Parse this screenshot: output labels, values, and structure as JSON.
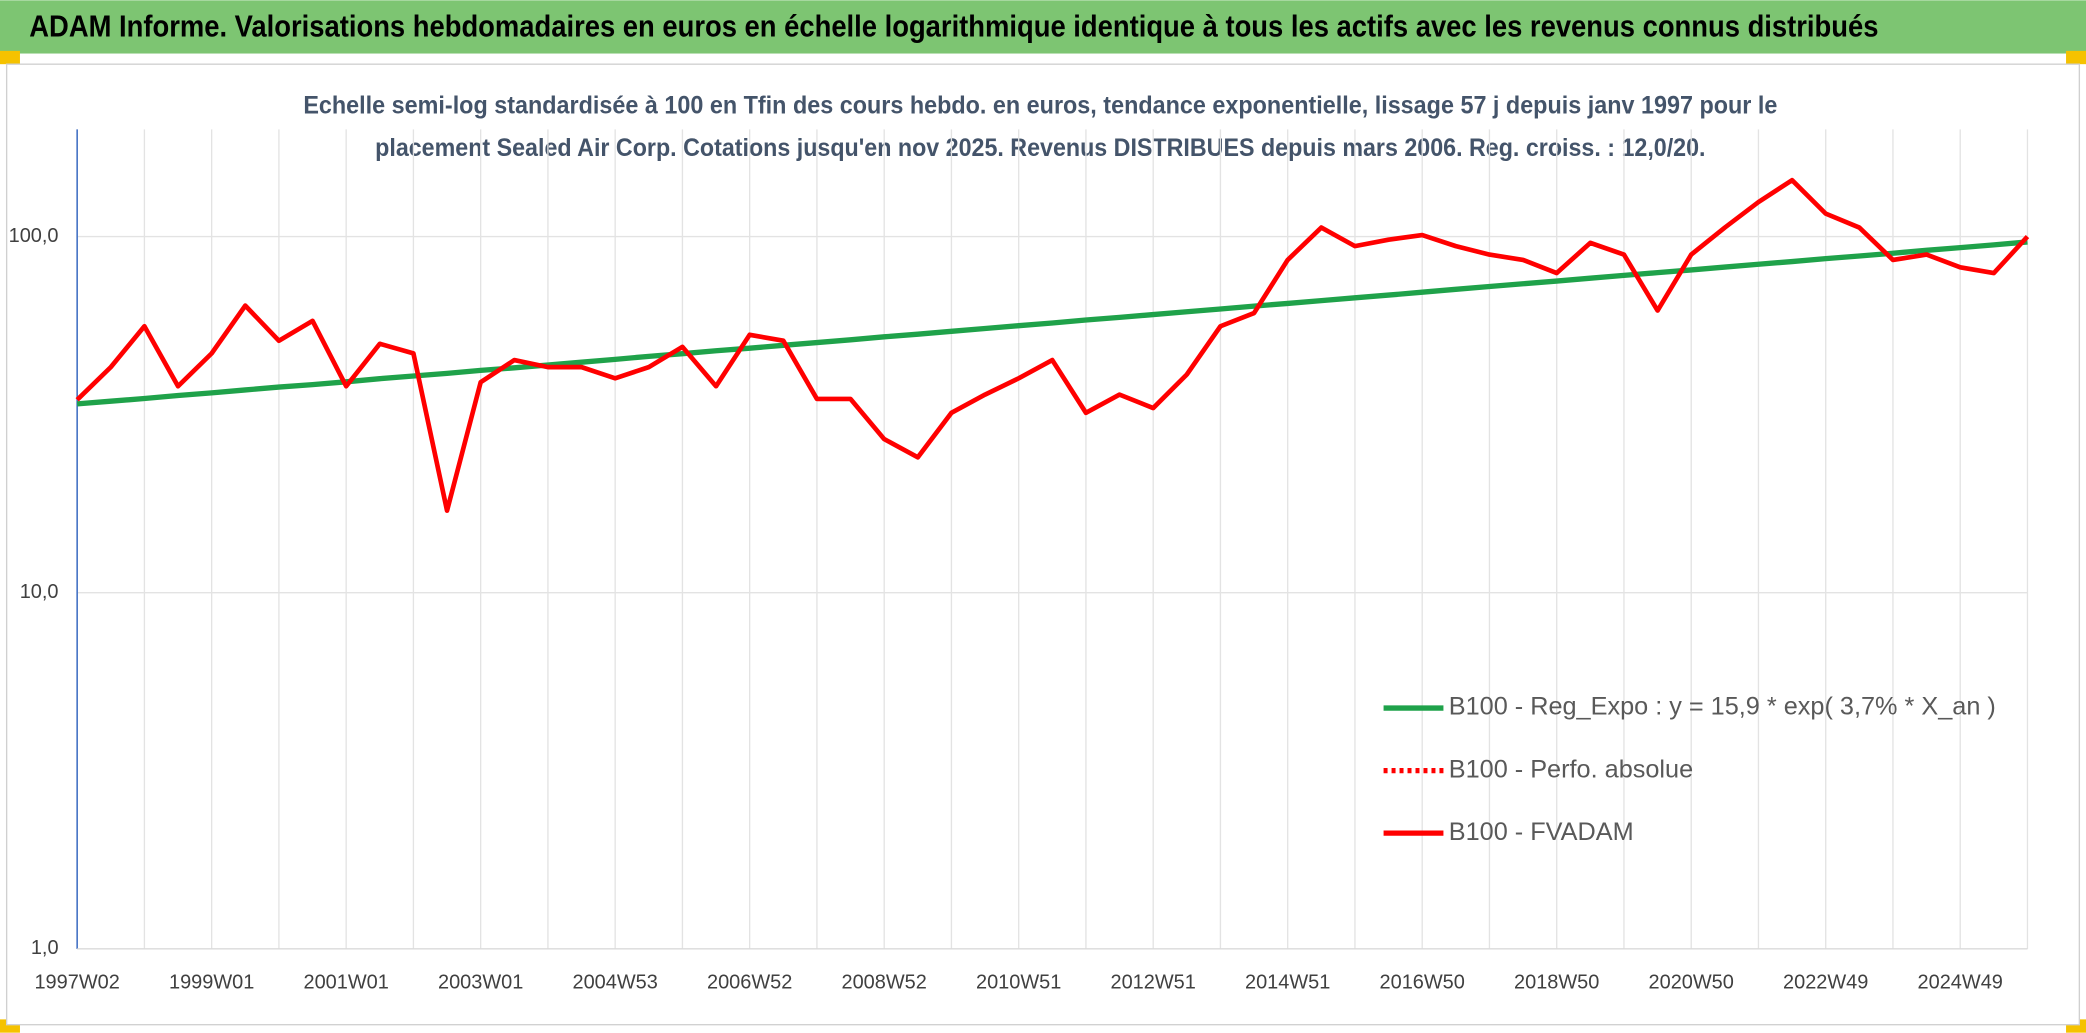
{
  "header": {
    "title": "ADAM Informe. Valorisations hebdomadaires en euros en échelle logarithmique identique à tous les actifs avec les revenus connus distribués"
  },
  "chart_data": {
    "type": "line",
    "subtitle": [
      "Echelle semi-log standardisée à 100 en Tfin des cours hebdo. en euros, tendance exponentielle, lissage 57 j depuis janv 1997 pour le",
      "placement Sealed Air Corp. Cotations jusqu'en nov 2025. Revenus DISTRIBUES depuis mars 2006. Reg. croiss. : 12,0/20."
    ],
    "categories": [
      "1997W02",
      null,
      null,
      null,
      "1999W01",
      null,
      null,
      null,
      "2001W01",
      null,
      null,
      null,
      "2003W01",
      null,
      null,
      null,
      "2004W53",
      null,
      null,
      null,
      "2006W52",
      null,
      null,
      null,
      "2008W52",
      null,
      null,
      null,
      "2010W51",
      null,
      null,
      null,
      "2012W51",
      null,
      null,
      null,
      "2014W51",
      null,
      null,
      null,
      "2016W50",
      null,
      null,
      null,
      "2018W50",
      null,
      null,
      null,
      "2020W50",
      null,
      null,
      null,
      "2022W49",
      null,
      null,
      null,
      "2024W49",
      null,
      null
    ],
    "log_scale": true,
    "ylim": [
      1,
      200
    ],
    "yticks": [
      {
        "value": 1,
        "label": "1,0"
      },
      {
        "value": 10,
        "label": "10,0"
      },
      {
        "value": 100,
        "label": "100,0"
      }
    ],
    "grid": true,
    "legend": "right",
    "series": [
      {
        "name": "B100 - Reg_Expo : y = 15,9 * exp( 3,7% *  X_an )",
        "color": "#1fa24a",
        "style": "solid",
        "values": [
          33.9,
          34.5,
          35.1,
          35.8,
          36.4,
          37.1,
          37.8,
          38.4,
          39.1,
          39.9,
          40.6,
          41.3,
          42.1,
          42.8,
          43.6,
          44.4,
          45.2,
          46.1,
          46.9,
          47.8,
          48.6,
          49.5,
          50.4,
          51.3,
          52.3,
          53.2,
          54.2,
          55.2,
          56.2,
          57.2,
          58.3,
          59.3,
          60.4,
          61.5,
          62.6,
          63.8,
          64.9,
          66.1,
          67.3,
          68.5,
          69.8,
          71.1,
          72.4,
          73.7,
          75.0,
          76.4,
          77.8,
          79.2,
          80.6,
          82.1,
          83.6,
          85.1,
          86.7,
          88.2,
          89.8,
          91.5,
          93.1,
          94.8,
          96.6
        ]
      },
      {
        "name": "B100 - Perfo. absolue",
        "color": "#ff0000",
        "style": "dotted",
        "values": [
          null,
          null,
          null,
          null,
          null,
          null,
          null,
          null,
          null,
          null,
          null,
          null,
          null,
          null,
          null,
          null,
          null,
          null,
          null,
          null,
          null,
          null,
          null,
          null,
          null,
          null,
          null,
          null,
          null,
          null,
          null,
          null,
          null,
          null,
          null,
          null,
          null,
          null,
          null,
          null,
          null,
          null,
          null,
          null,
          null,
          null,
          null,
          null,
          null,
          null,
          null,
          null,
          null,
          null,
          null,
          null,
          null,
          null,
          null
        ]
      },
      {
        "name": "B100 - FVADAM",
        "color": "#ff0000",
        "style": "solid",
        "values": [
          34.8,
          43,
          56,
          38,
          47,
          64,
          51,
          58,
          38,
          50,
          47,
          17,
          39,
          45,
          43,
          43,
          40,
          43,
          49,
          38,
          53,
          51,
          35,
          35,
          27,
          24,
          32,
          36,
          40,
          45,
          32,
          36,
          33,
          41,
          56,
          61,
          86,
          106,
          94,
          98,
          101,
          94,
          89,
          86,
          79,
          96,
          89,
          62,
          89,
          106,
          125,
          144,
          116,
          106,
          86,
          89,
          82,
          79,
          100
        ]
      }
    ]
  }
}
